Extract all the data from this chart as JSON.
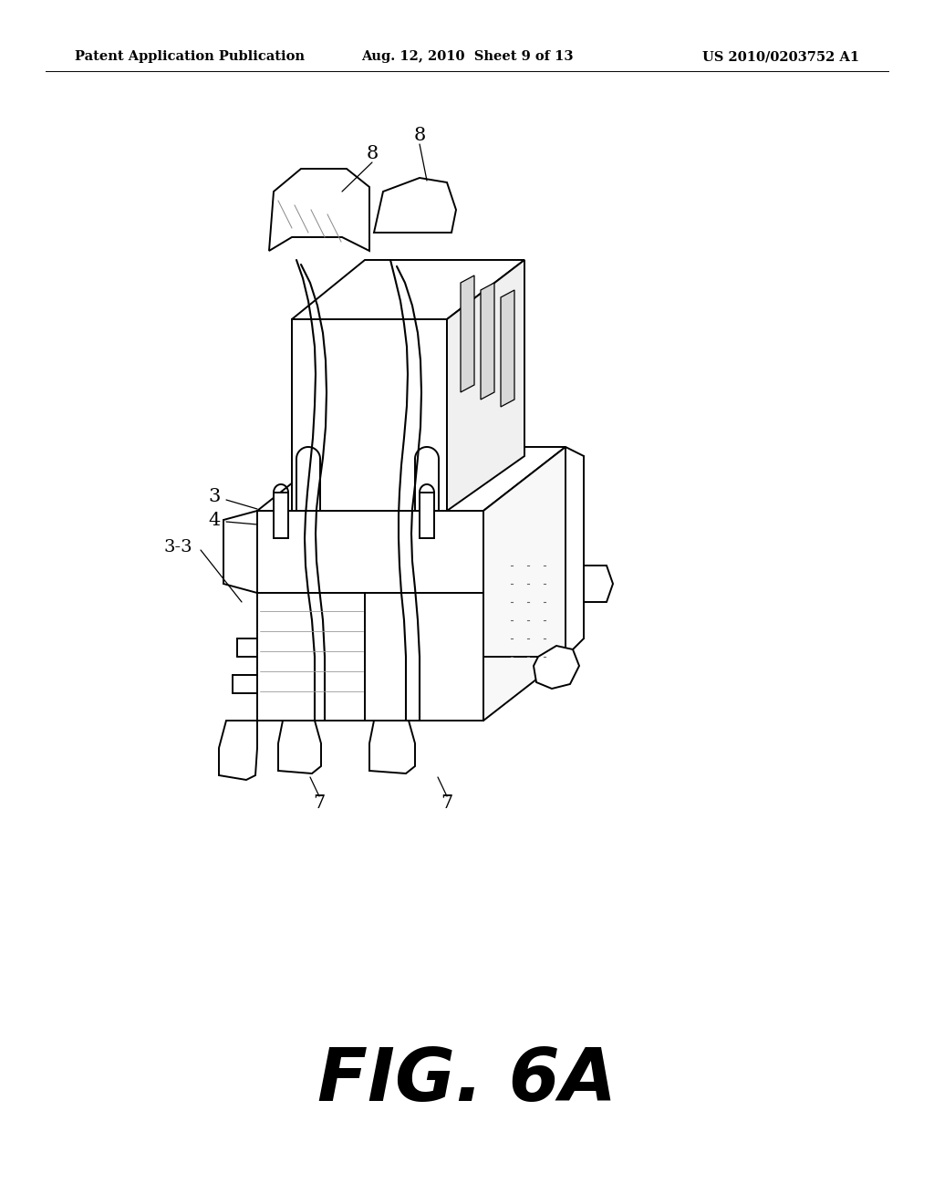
{
  "background_color": "#ffffff",
  "header_left": "Patent Application Publication",
  "header_center": "Aug. 12, 2010  Sheet 9 of 13",
  "header_right": "US 2010/0203752 A1",
  "header_fontsize": 10.5,
  "caption": "FIG. 6A",
  "caption_fontsize": 58,
  "lc": "#000000",
  "lw": 1.4,
  "label_fontsize": 14
}
